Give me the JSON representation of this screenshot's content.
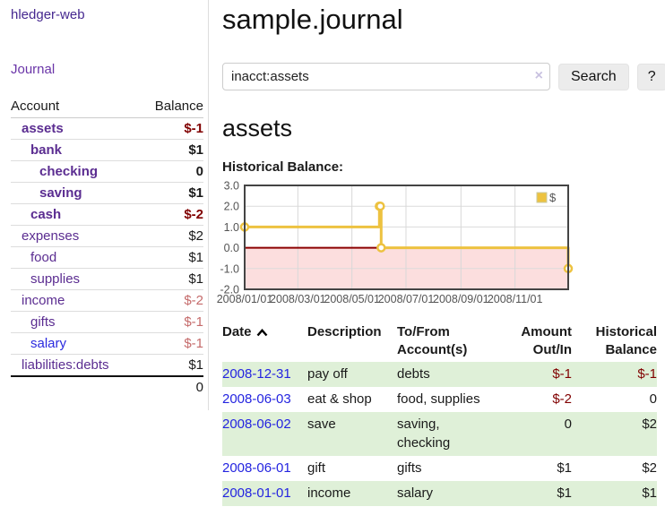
{
  "sidebar": {
    "brand": "hledger-web",
    "journal_label": "Journal",
    "accounts_table": {
      "headers": [
        "Account",
        "Balance"
      ],
      "rows": [
        {
          "account": "assets",
          "balance": "$-1",
          "indent": 1,
          "bold": true,
          "negative": "strong"
        },
        {
          "account": "bank",
          "balance": "$1",
          "indent": 2,
          "bold": true,
          "negative": "none"
        },
        {
          "account": "checking",
          "balance": "0",
          "indent": 3,
          "bold": true,
          "negative": "none"
        },
        {
          "account": "saving",
          "balance": "$1",
          "indent": 3,
          "bold": true,
          "negative": "none"
        },
        {
          "account": "cash",
          "balance": "$-2",
          "indent": 2,
          "bold": true,
          "negative": "strong"
        },
        {
          "account": "expenses",
          "balance": "$2",
          "indent": 1,
          "bold": false,
          "negative": "none"
        },
        {
          "account": "food",
          "balance": "$1",
          "indent": 2,
          "bold": false,
          "negative": "none"
        },
        {
          "account": "supplies",
          "balance": "$1",
          "indent": 2,
          "bold": false,
          "negative": "none"
        },
        {
          "account": "income",
          "balance": "$-2",
          "indent": 1,
          "bold": false,
          "negative": "dim"
        },
        {
          "account": "gifts",
          "balance": "$-1",
          "indent": 2,
          "bold": false,
          "negative": "dim"
        },
        {
          "account": "salary",
          "balance": "$-1",
          "indent": 2,
          "bold": false,
          "negative": "dim",
          "link_style": "unvisited"
        },
        {
          "account": "liabilities:debts",
          "balance": "$1",
          "indent": 1,
          "bold": false,
          "negative": "none"
        }
      ],
      "total": "0"
    }
  },
  "header": {
    "title": "sample.journal"
  },
  "search": {
    "query": "inacct:assets",
    "clear_icon": "×",
    "button_label": "Search",
    "help_label": "?"
  },
  "account_page": {
    "title": "assets",
    "chart_heading": "Historical Balance:"
  },
  "chart_data": {
    "type": "line",
    "step": true,
    "title": "Historical Balance",
    "series": [
      {
        "name": "$",
        "color": "#edc240",
        "points": [
          [
            "2008-01-01",
            1
          ],
          [
            "2008-06-01",
            2
          ],
          [
            "2008-06-02",
            2
          ],
          [
            "2008-06-03",
            0
          ],
          [
            "2008-12-31",
            -1
          ]
        ]
      }
    ],
    "x_ticks": [
      "2008/01/01",
      "2008/03/01",
      "2008/05/01",
      "2008/07/01",
      "2008/09/01",
      "2008/11/01"
    ],
    "y_ticks": [
      3,
      2,
      1,
      0,
      -1,
      -2
    ],
    "xlim": [
      "2008-01-01",
      "2008-12-31"
    ],
    "ylim": [
      -2,
      3
    ],
    "grid": true,
    "legend": {
      "position": "top-right",
      "label": "$",
      "swatch_color": "#edc240"
    },
    "negative_region_fill": "#fcdede",
    "zero_line_color": "#8b0000",
    "marker": {
      "shape": "circle",
      "fill": "#ffffff"
    }
  },
  "register": {
    "headers": {
      "date": "Date",
      "description": "Description",
      "accounts": "To/From Account(s)",
      "amount": "Amount Out/In",
      "balance": "Historical Balance"
    },
    "rows": [
      {
        "date": "2008-12-31",
        "description": "pay off",
        "accounts": "debts",
        "amount": "$-1",
        "balance": "$-1",
        "amount_negative": true,
        "balance_negative": true,
        "shaded": true,
        "accounts_wrap": false
      },
      {
        "date": "2008-06-03",
        "description": "eat & shop",
        "accounts": "food, supplies",
        "amount": "$-2",
        "balance": "0",
        "amount_negative": true,
        "balance_negative": false,
        "shaded": false,
        "accounts_wrap": false
      },
      {
        "date": "2008-06-02",
        "description": "save",
        "accounts": "saving, checking",
        "amount": "0",
        "balance": "$2",
        "amount_negative": false,
        "balance_negative": false,
        "shaded": true,
        "accounts_wrap": true
      },
      {
        "date": "2008-06-01",
        "description": "gift",
        "accounts": "gifts",
        "amount": "$1",
        "balance": "$2",
        "amount_negative": false,
        "balance_negative": false,
        "shaded": false,
        "accounts_wrap": false
      },
      {
        "date": "2008-01-01",
        "description": "income",
        "accounts": "salary",
        "amount": "$1",
        "balance": "$1",
        "amount_negative": false,
        "balance_negative": false,
        "shaded": true,
        "accounts_wrap": false
      }
    ]
  },
  "colors": {
    "negative_strong": "#800000",
    "negative_dim": "#c56b6b",
    "row_stripe_green": "#dff0d8",
    "date_link_blue": "#2424e0",
    "account_link_purple": "#5b2d91",
    "unvisited_link_blue": "#2a2adf",
    "series_yellow": "#edc240"
  }
}
